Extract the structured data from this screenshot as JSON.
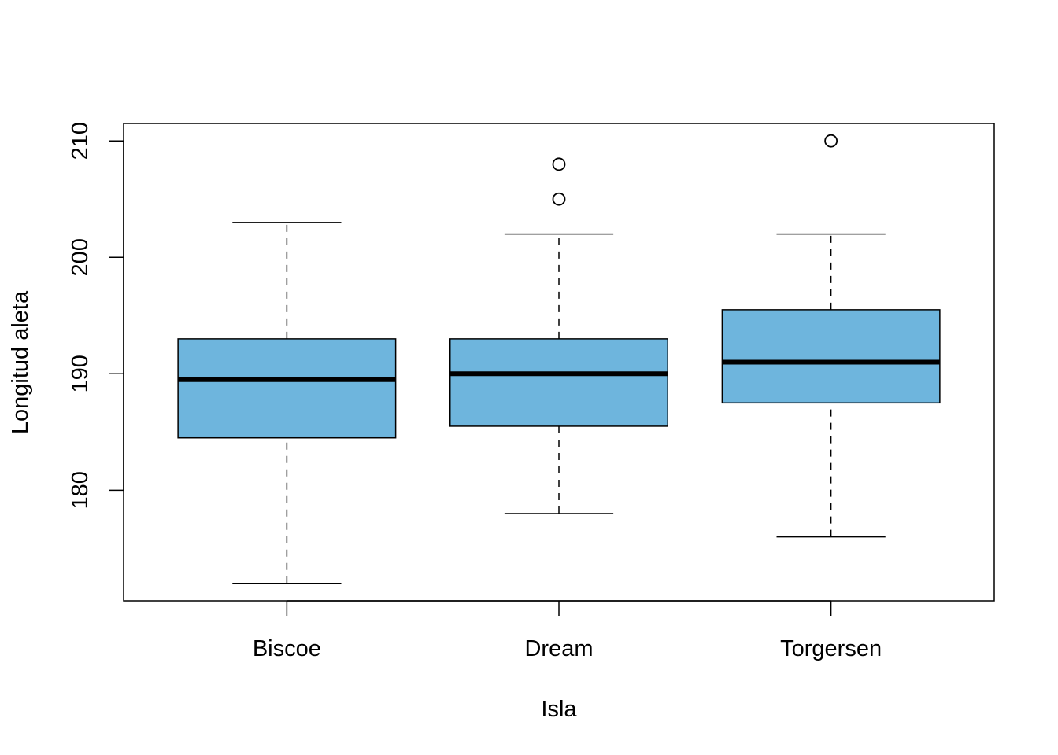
{
  "chart_data": {
    "type": "box",
    "title": "",
    "xlabel": "Isla",
    "ylabel": "Longitud aleta",
    "ylim": [
      170.5,
      211.5
    ],
    "yticks": [
      180,
      190,
      200,
      210
    ],
    "box_color": "#6EB5DD",
    "grid": false,
    "categories": [
      "Biscoe",
      "Dream",
      "Torgersen"
    ],
    "boxes": [
      {
        "category": "Biscoe",
        "whisker_low": 172,
        "q1": 184.5,
        "median": 189.5,
        "q3": 193,
        "whisker_high": 203,
        "outliers": []
      },
      {
        "category": "Dream",
        "whisker_low": 178,
        "q1": 185.5,
        "median": 190,
        "q3": 193,
        "whisker_high": 202,
        "outliers": [
          205,
          208
        ]
      },
      {
        "category": "Torgersen",
        "whisker_low": 176,
        "q1": 187.5,
        "median": 191,
        "q3": 195.5,
        "whisker_high": 202,
        "outliers": [
          210
        ]
      }
    ]
  }
}
